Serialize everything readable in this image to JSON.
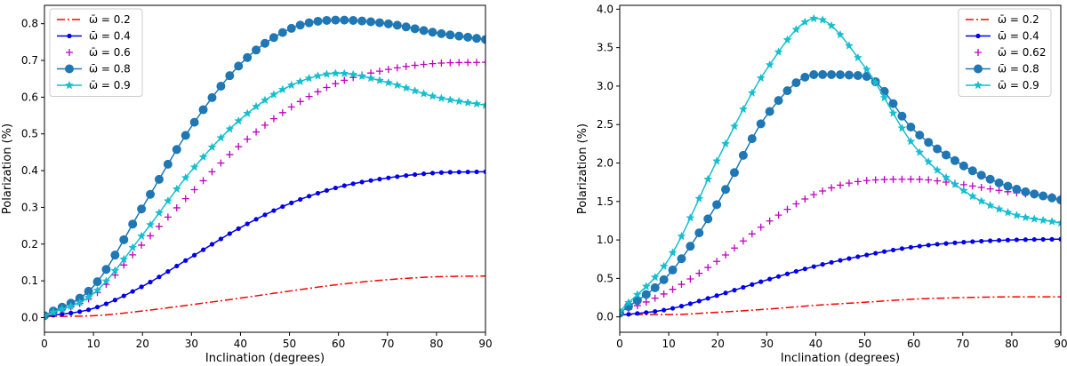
{
  "chart_data": [
    {
      "type": "line",
      "xlabel": "Inclination (degrees)",
      "ylabel": "Polarization (%)",
      "xlim": [
        0,
        90
      ],
      "ylim": [
        -0.04,
        0.85
      ],
      "xticks": [
        0,
        10,
        20,
        30,
        40,
        50,
        60,
        70,
        80,
        90
      ],
      "xtick_labels": [
        "0",
        "10",
        "20",
        "30",
        "40",
        "50",
        "60",
        "70",
        "80",
        "90"
      ],
      "yticks": [
        0.0,
        0.1,
        0.2,
        0.3,
        0.4,
        0.5,
        0.6,
        0.7,
        0.8
      ],
      "ytick_labels": [
        "0.0",
        "0.1",
        "0.2",
        "0.3",
        "0.4",
        "0.5",
        "0.6",
        "0.7",
        "0.8"
      ],
      "legend_position": "top-left",
      "x": [
        0,
        10,
        20,
        30,
        40,
        50,
        60,
        70,
        80,
        90
      ],
      "series": [
        {
          "name": "ω̄ = 0.2",
          "color": "#ff0000",
          "style": "dashdot",
          "marker": "none",
          "values": [
            0.003,
            0.005,
            0.018,
            0.035,
            0.053,
            0.072,
            0.09,
            0.103,
            0.111,
            0.113
          ]
        },
        {
          "name": "ω̄ = 0.4",
          "color": "#0000ee",
          "style": "solid",
          "marker": "dot",
          "values": [
            0.003,
            0.025,
            0.085,
            0.165,
            0.245,
            0.31,
            0.355,
            0.38,
            0.394,
            0.397
          ]
        },
        {
          "name": "ω̄ = 0.6",
          "color": "#bf00bf",
          "style": "none",
          "marker": "plus",
          "values": [
            0.005,
            0.06,
            0.2,
            0.34,
            0.47,
            0.57,
            0.64,
            0.675,
            0.692,
            0.695
          ]
        },
        {
          "name": "ω̄ = 0.8",
          "color": "#1f77b4",
          "style": "solid",
          "marker": "circle",
          "values": [
            0.005,
            0.085,
            0.3,
            0.52,
            0.69,
            0.785,
            0.81,
            0.8,
            0.775,
            0.757
          ]
        },
        {
          "name": "ω̄ = 0.9",
          "color": "#17becf",
          "style": "solid",
          "marker": "star",
          "values": [
            0.005,
            0.065,
            0.225,
            0.4,
            0.54,
            0.63,
            0.665,
            0.64,
            0.6,
            0.578
          ]
        }
      ]
    },
    {
      "type": "line",
      "xlabel": "Inclination (degrees)",
      "ylabel": "Polarization (%)",
      "xlim": [
        0,
        90
      ],
      "ylim": [
        -0.2,
        4.05
      ],
      "xticks": [
        0,
        10,
        20,
        30,
        40,
        50,
        60,
        70,
        80,
        90
      ],
      "xtick_labels": [
        "0",
        "10",
        "20",
        "30",
        "40",
        "50",
        "60",
        "70",
        "80",
        "90"
      ],
      "yticks": [
        0.0,
        0.5,
        1.0,
        1.5,
        2.0,
        2.5,
        3.0,
        3.5,
        4.0
      ],
      "ytick_labels": [
        "0.0",
        "0.5",
        "1.0",
        "1.5",
        "2.0",
        "2.5",
        "3.0",
        "3.5",
        "4.0"
      ],
      "legend_position": "top-right",
      "x": [
        0,
        10,
        20,
        30,
        40,
        50,
        60,
        70,
        80,
        90
      ],
      "series": [
        {
          "name": "ω̄ = 0.2",
          "color": "#ff0000",
          "style": "dashdot",
          "marker": "none",
          "values": [
            0.03,
            0.03,
            0.06,
            0.1,
            0.15,
            0.19,
            0.23,
            0.25,
            0.26,
            0.26
          ]
        },
        {
          "name": "ω̄ = 0.4",
          "color": "#0000ee",
          "style": "solid",
          "marker": "dot",
          "values": [
            0.02,
            0.1,
            0.28,
            0.48,
            0.66,
            0.8,
            0.91,
            0.97,
            1.0,
            1.01
          ]
        },
        {
          "name": "ω̄ = 0.62",
          "color": "#bf00bf",
          "style": "none",
          "marker": "plus",
          "values": [
            0.05,
            0.33,
            0.73,
            1.22,
            1.6,
            1.77,
            1.79,
            1.72,
            1.62,
            1.55
          ]
        },
        {
          "name": "ω̄ = 0.8",
          "color": "#1f77b4",
          "style": "solid",
          "marker": "circle",
          "values": [
            0.05,
            0.55,
            1.48,
            2.62,
            3.15,
            3.13,
            2.43,
            1.97,
            1.68,
            1.52
          ]
        },
        {
          "name": "ω̄ = 0.9",
          "color": "#17becf",
          "style": "solid",
          "marker": "star",
          "values": [
            0.07,
            0.75,
            2.05,
            3.22,
            3.88,
            3.25,
            2.23,
            1.65,
            1.34,
            1.22
          ]
        }
      ]
    }
  ]
}
